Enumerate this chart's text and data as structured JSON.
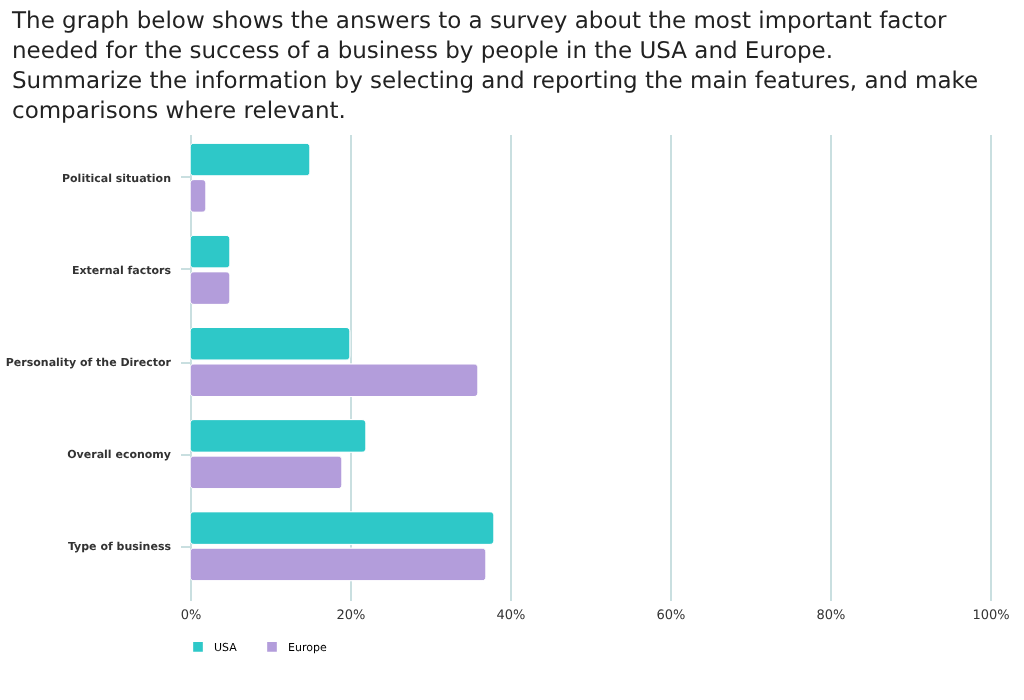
{
  "chart_data": {
    "type": "bar",
    "orientation": "horizontal",
    "title": "The graph below shows the answers to a survey about the most important factor needed for the success of a business by people in the USA and Europe.",
    "subtitle": "Summarize the information by selecting and reporting the main features, and make comparisons where relevant.",
    "categories": [
      "Political situation",
      "External factors",
      "Personality of the Director",
      "Overall economy",
      "Type of business"
    ],
    "series": [
      {
        "name": "USA",
        "color": "#2ec8c8",
        "values": [
          15,
          5,
          20,
          22,
          38
        ]
      },
      {
        "name": "Europe",
        "color": "#b39ddb",
        "values": [
          2,
          5,
          36,
          19,
          37
        ]
      }
    ],
    "xlim": [
      0,
      100
    ],
    "xticks": [
      {
        "value": 0,
        "label": "0%"
      },
      {
        "value": 20,
        "label": "20%"
      },
      {
        "value": 40,
        "label": "40%"
      },
      {
        "value": 60,
        "label": "60%"
      },
      {
        "value": 80,
        "label": "80%"
      },
      {
        "value": 100,
        "label": "100%"
      }
    ],
    "grid": "x",
    "legend": "bottom"
  }
}
